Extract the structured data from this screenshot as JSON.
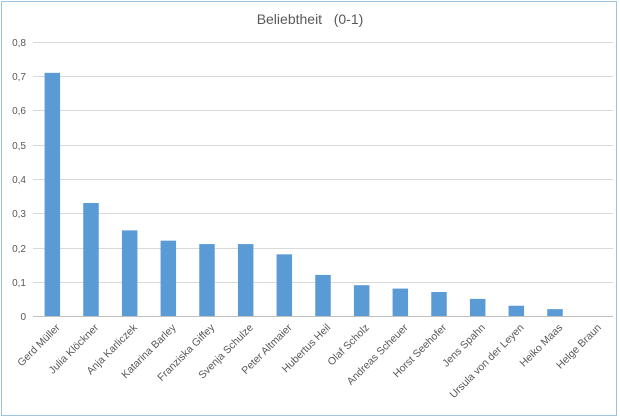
{
  "chart_data": {
    "type": "bar",
    "title": "Beliebtheit   (0-1)",
    "xlabel": "",
    "ylabel": "",
    "categories": [
      "Gerd Müller",
      "Julia Klöckner",
      "Anja Karliczek",
      "Katarina Barley",
      "Franziska Giffey",
      "Svenja Schulze",
      "Peter Altmaier",
      "Hubertus Heil",
      "Olaf Scholz",
      "Andreas Scheuer",
      "Horst Seehofer",
      "Jens Spahn",
      "Ursula von der Leyen",
      "Heiko Maas",
      "Helge Braun"
    ],
    "values": [
      0.71,
      0.33,
      0.25,
      0.22,
      0.21,
      0.21,
      0.18,
      0.12,
      0.09,
      0.08,
      0.07,
      0.05,
      0.03,
      0.02,
      0
    ],
    "ylim": [
      0,
      0.8
    ],
    "yticks": [
      "0",
      "0,1",
      "0,2",
      "0,3",
      "0,4",
      "0,5",
      "0,6",
      "0,7",
      "0,8"
    ],
    "grid": true,
    "legend": "none",
    "bar_color": "#5b9bd5"
  }
}
